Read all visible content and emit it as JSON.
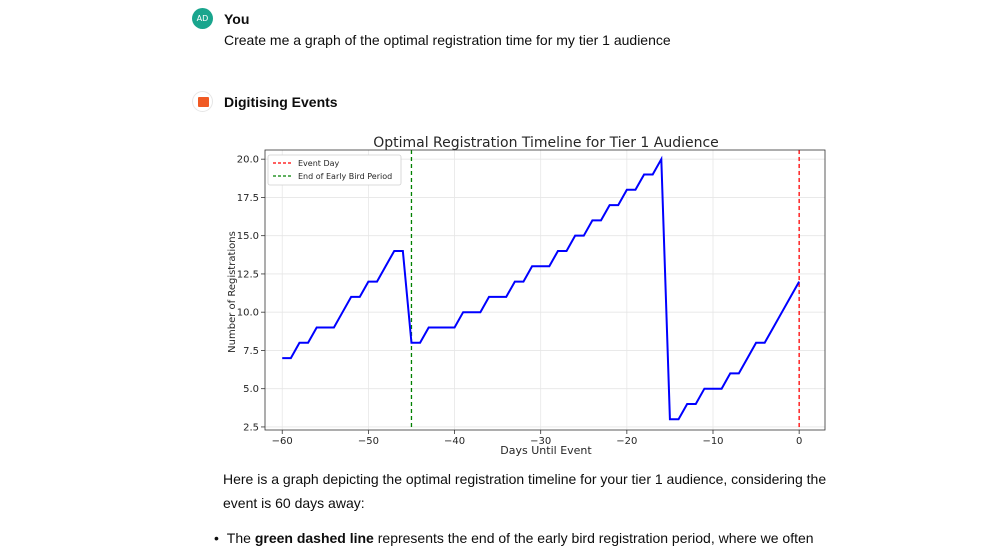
{
  "user": {
    "avatar_initials": "AD",
    "name": "You",
    "message": "Create me a graph of the optimal registration time for my tier 1 audience"
  },
  "assistant": {
    "name": "Digitising Events",
    "paragraph": "Here is a graph depicting the optimal registration timeline for your tier 1 audience, considering the event is 60 days away:",
    "bullet_prefix": "The ",
    "bullet_bold": "green dashed line",
    "bullet_rest": " represents the end of the early bird registration period, where we often"
  },
  "chart_data": {
    "type": "line",
    "title": "Optimal Registration Timeline for Tier 1 Audience",
    "xlabel": "Days Until Event",
    "ylabel": "Number of Registrations",
    "xlim": [
      -62,
      3
    ],
    "ylim": [
      2.3,
      20.6
    ],
    "xticks": [
      -60,
      -50,
      -40,
      -30,
      -20,
      -10,
      0
    ],
    "xtick_labels": [
      "−60",
      "−50",
      "−40",
      "−30",
      "−20",
      "−10",
      "0"
    ],
    "yticks": [
      2.5,
      5.0,
      7.5,
      10.0,
      12.5,
      15.0,
      17.5,
      20.0
    ],
    "ytick_labels": [
      "2.5",
      "5.0",
      "7.5",
      "10.0",
      "12.5",
      "15.0",
      "17.5",
      "20.0"
    ],
    "grid": true,
    "legend_position": "top-left",
    "series": [
      {
        "color": "#0000ff",
        "x": [
          -60,
          -59,
          -58,
          -57,
          -56,
          -55,
          -54,
          -53,
          -52,
          -51,
          -50,
          -49,
          -48,
          -47,
          -46,
          -45,
          -44,
          -43,
          -42,
          -41,
          -40,
          -39,
          -38,
          -37,
          -36,
          -35,
          -34,
          -33,
          -32,
          -31,
          -30,
          -29,
          -28,
          -27,
          -26,
          -25,
          -24,
          -23,
          -22,
          -21,
          -20,
          -19,
          -18,
          -17,
          -16,
          -15,
          -14,
          -13,
          -12,
          -11,
          -10,
          -9,
          -8,
          -7,
          -6,
          -5,
          -4,
          -3,
          -2,
          -1,
          0
        ],
        "y": [
          7,
          7,
          8,
          8,
          9,
          9,
          9,
          10,
          11,
          11,
          12,
          12,
          13,
          14,
          14,
          8,
          8,
          9,
          9,
          9,
          9,
          10,
          10,
          10,
          11,
          11,
          11,
          12,
          12,
          13,
          13,
          13,
          14,
          14,
          15,
          15,
          16,
          16,
          17,
          17,
          18,
          18,
          19,
          19,
          20,
          3,
          3,
          4,
          4,
          5,
          5,
          5,
          6,
          6,
          7,
          8,
          8,
          9,
          10,
          11,
          12
        ]
      }
    ],
    "vlines": [
      {
        "name": "Event Day",
        "x": 0,
        "color": "#ff0000"
      },
      {
        "name": "End of Early Bird Period",
        "x": -45,
        "color": "#008000"
      }
    ]
  }
}
